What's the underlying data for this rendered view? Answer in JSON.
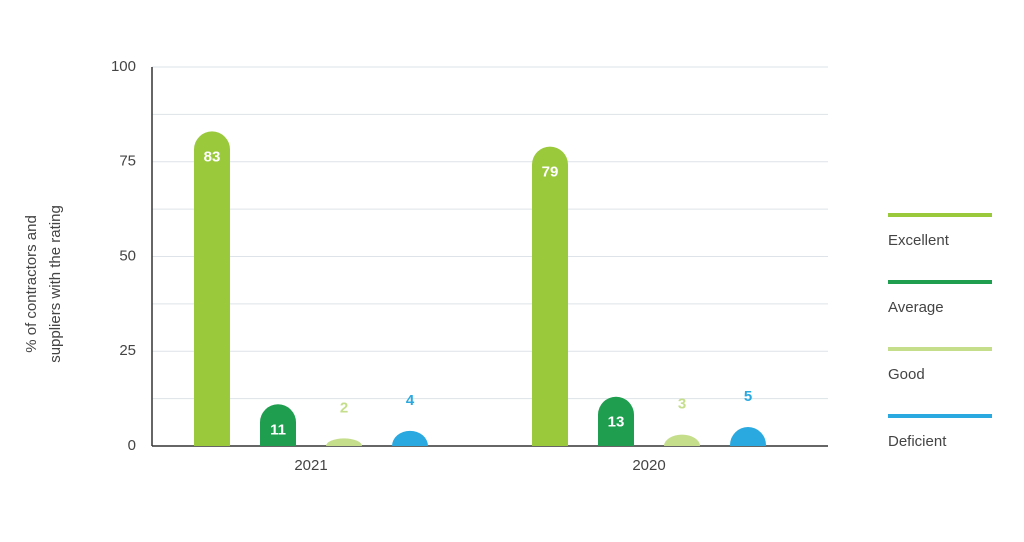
{
  "chart_data": {
    "type": "bar",
    "ylabel": [
      "% of contractors and",
      "suppliers with the rating"
    ],
    "categories": [
      "2021",
      "2020"
    ],
    "series": [
      {
        "name": "Excellent",
        "color": "#9ac93c",
        "values": [
          83,
          79
        ]
      },
      {
        "name": "Average",
        "color": "#1f9e4f",
        "values": [
          11,
          13
        ]
      },
      {
        "name": "Good",
        "color": "#c5de8c",
        "values": [
          2,
          3
        ]
      },
      {
        "name": "Deficient",
        "color": "#2aa9e0",
        "values": [
          4,
          5
        ]
      }
    ],
    "ylim": [
      0,
      100
    ],
    "yticks": [
      0,
      25,
      50,
      75,
      100
    ],
    "minor_yticks": [
      12.5,
      37.5,
      62.5,
      87.5
    ],
    "grid": true,
    "legend": "right"
  }
}
